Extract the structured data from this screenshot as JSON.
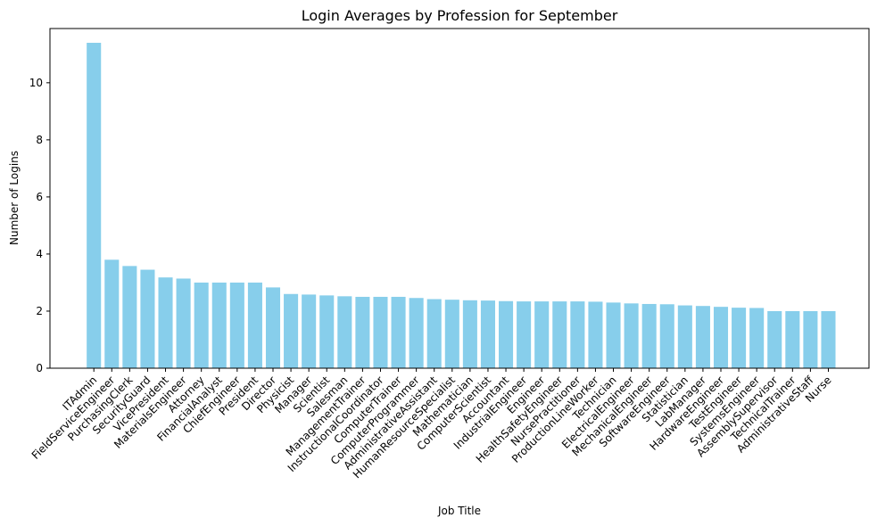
{
  "chart_data": {
    "type": "bar",
    "title": "Login Averages by Profession for September",
    "xlabel": "Job Title",
    "ylabel": "Number of Logins",
    "ylim": [
      0,
      11.9
    ],
    "yticks": [
      0,
      2,
      4,
      6,
      8,
      10
    ],
    "bar_color": "#87ceeb",
    "grid": false,
    "categories": [
      "ITAdmin",
      "FieldServiceEngineer",
      "PurchasingClerk",
      "SecurityGuard",
      "VicePresident",
      "MaterialsEngineer",
      "Attorney",
      "FinancialAnalyst",
      "ChiefEngineer",
      "President",
      "Director",
      "Physicist",
      "Manager",
      "Scientist",
      "Salesman",
      "ManagementTrainer",
      "InstructionalCoordinator",
      "ComputerTrainer",
      "ComputerProgrammer",
      "AdministrativeAssistant",
      "HumanResourceSpecialist",
      "Mathematician",
      "ComputerScientist",
      "Accountant",
      "IndustrialEngineer",
      "Engineer",
      "HealthSafetyEngineer",
      "NursePractitioner",
      "ProductionLineWorker",
      "Technician",
      "ElectricalEngineer",
      "MechanicalEngineer",
      "SoftwareEngineer",
      "Statistician",
      "LabManager",
      "HardwareEngineer",
      "TestEngineer",
      "SystemsEngineer",
      "AssemblySupervisor",
      "TechnicalTrainer",
      "AdministrativeStaff",
      "Nurse"
    ],
    "values": [
      11.4,
      3.8,
      3.58,
      3.45,
      3.18,
      3.14,
      3.0,
      3.0,
      3.0,
      3.0,
      2.83,
      2.6,
      2.58,
      2.55,
      2.52,
      2.5,
      2.5,
      2.5,
      2.46,
      2.42,
      2.4,
      2.38,
      2.37,
      2.35,
      2.34,
      2.34,
      2.34,
      2.34,
      2.33,
      2.3,
      2.27,
      2.25,
      2.24,
      2.2,
      2.18,
      2.15,
      2.12,
      2.11,
      2.0,
      2.0,
      2.0,
      2.0
    ]
  }
}
